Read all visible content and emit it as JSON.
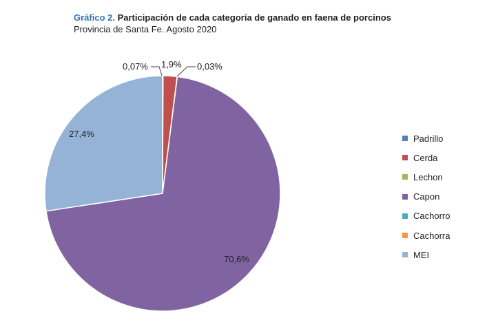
{
  "header": {
    "title_prefix": "Gráfico 2.",
    "title_text": "Participación de cada categoría de ganado en faena de porcinos",
    "subtitle": "Provincia de Santa Fe. Agosto 2020"
  },
  "chart_data": {
    "type": "pie",
    "title": "Gráfico 2. Participación de cada categoría de ganado en faena de porcinos",
    "subtitle": "Provincia de Santa Fe. Agosto 2020",
    "legend_position": "right",
    "slices": [
      {
        "name": "Padrillo",
        "value": 0.07,
        "label": "0,07%",
        "color": "#4f81bd"
      },
      {
        "name": "Cerda",
        "value": 1.9,
        "label": "1,9%",
        "color": "#c0504d"
      },
      {
        "name": "Lechon",
        "value": 0.03,
        "label": "0,03%",
        "color": "#9bbb59"
      },
      {
        "name": "Capon",
        "value": 70.6,
        "label": "70,6%",
        "color": "#8064a2"
      },
      {
        "name": "Cachorro",
        "value": 0,
        "label": "",
        "color": "#4bacc6"
      },
      {
        "name": "Cachorra",
        "value": 0,
        "label": "",
        "color": "#f79646"
      },
      {
        "name": "MEI",
        "value": 27.4,
        "label": "27,4%",
        "color": "#95b3d7"
      }
    ]
  }
}
